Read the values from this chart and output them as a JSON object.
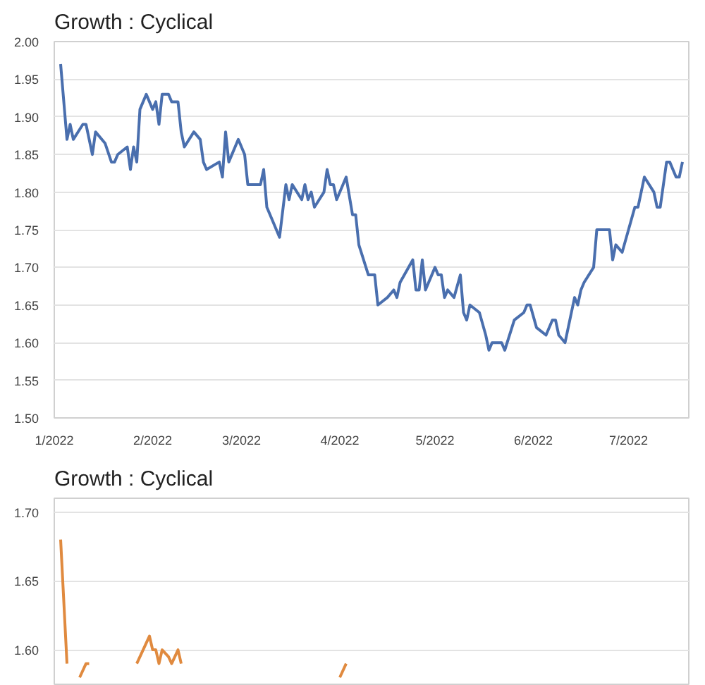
{
  "chart_data": [
    {
      "type": "line",
      "title": "Growth : Cyclical",
      "grid": "y",
      "xlim": [
        "2022-01-01",
        "2022-07-20"
      ],
      "xticks": [
        {
          "value": "2022-01-01",
          "label": "1/2022"
        },
        {
          "value": "2022-02-01",
          "label": "2/2022"
        },
        {
          "value": "2022-03-01",
          "label": "3/2022"
        },
        {
          "value": "2022-04-01",
          "label": "4/2022"
        },
        {
          "value": "2022-05-01",
          "label": "5/2022"
        },
        {
          "value": "2022-06-01",
          "label": "6/2022"
        },
        {
          "value": "2022-07-01",
          "label": "7/2022"
        }
      ],
      "ylim": [
        1.5,
        2.0
      ],
      "yticks": [
        {
          "value": 1.5,
          "label": "1.50"
        },
        {
          "value": 1.55,
          "label": "1.55"
        },
        {
          "value": 1.6,
          "label": "1.60"
        },
        {
          "value": 1.65,
          "label": "1.65"
        },
        {
          "value": 1.7,
          "label": "1.70"
        },
        {
          "value": 1.75,
          "label": "1.75"
        },
        {
          "value": 1.8,
          "label": "1.80"
        },
        {
          "value": 1.85,
          "label": "1.85"
        },
        {
          "value": 1.9,
          "label": "1.90"
        },
        {
          "value": 1.95,
          "label": "1.95"
        },
        {
          "value": 2.0,
          "label": "2.00"
        }
      ],
      "series": [
        {
          "color": "#4a6fae",
          "x": [
            "2022-01-03",
            "2022-01-05",
            "2022-01-06",
            "2022-01-07",
            "2022-01-10",
            "2022-01-11",
            "2022-01-13",
            "2022-01-14",
            "2022-01-17",
            "2022-01-19",
            "2022-01-20",
            "2022-01-21",
            "2022-01-24",
            "2022-01-25",
            "2022-01-26",
            "2022-01-27",
            "2022-01-28",
            "2022-01-30",
            "2022-02-01",
            "2022-02-02",
            "2022-02-03",
            "2022-02-04",
            "2022-02-06",
            "2022-02-07",
            "2022-02-09",
            "2022-02-10",
            "2022-02-11",
            "2022-02-14",
            "2022-02-16",
            "2022-02-17",
            "2022-02-18",
            "2022-02-22",
            "2022-02-23",
            "2022-02-24",
            "2022-02-25",
            "2022-02-28",
            "2022-03-02",
            "2022-03-03",
            "2022-03-07",
            "2022-03-08",
            "2022-03-09",
            "2022-03-11",
            "2022-03-13",
            "2022-03-15",
            "2022-03-16",
            "2022-03-17",
            "2022-03-20",
            "2022-03-21",
            "2022-03-22",
            "2022-03-23",
            "2022-03-24",
            "2022-03-27",
            "2022-03-28",
            "2022-03-29",
            "2022-03-30",
            "2022-03-31",
            "2022-04-03",
            "2022-04-05",
            "2022-04-06",
            "2022-04-07",
            "2022-04-10",
            "2022-04-12",
            "2022-04-13",
            "2022-04-16",
            "2022-04-18",
            "2022-04-19",
            "2022-04-20",
            "2022-04-24",
            "2022-04-25",
            "2022-04-26",
            "2022-04-27",
            "2022-04-28",
            "2022-05-01",
            "2022-05-02",
            "2022-05-03",
            "2022-05-04",
            "2022-05-05",
            "2022-05-07",
            "2022-05-09",
            "2022-05-10",
            "2022-05-11",
            "2022-05-12",
            "2022-05-15",
            "2022-05-17",
            "2022-05-18",
            "2022-05-19",
            "2022-05-22",
            "2022-05-23",
            "2022-05-26",
            "2022-05-29",
            "2022-05-30",
            "2022-05-31",
            "2022-06-02",
            "2022-06-05",
            "2022-06-07",
            "2022-06-08",
            "2022-06-09",
            "2022-06-11",
            "2022-06-14",
            "2022-06-15",
            "2022-06-16",
            "2022-06-17",
            "2022-06-20",
            "2022-06-21",
            "2022-06-25",
            "2022-06-26",
            "2022-06-27",
            "2022-06-29",
            "2022-07-03",
            "2022-07-04",
            "2022-07-06",
            "2022-07-09",
            "2022-07-10",
            "2022-07-11",
            "2022-07-13",
            "2022-07-14",
            "2022-07-16",
            "2022-07-17",
            "2022-07-18"
          ],
          "values": [
            1.97,
            1.87,
            1.89,
            1.87,
            1.89,
            1.89,
            1.85,
            1.88,
            1.865,
            1.84,
            1.84,
            1.85,
            1.86,
            1.83,
            1.86,
            1.84,
            1.91,
            1.93,
            1.91,
            1.92,
            1.89,
            1.93,
            1.93,
            1.92,
            1.92,
            1.88,
            1.86,
            1.88,
            1.87,
            1.84,
            1.83,
            1.84,
            1.82,
            1.88,
            1.84,
            1.87,
            1.85,
            1.81,
            1.81,
            1.83,
            1.78,
            1.76,
            1.74,
            1.81,
            1.79,
            1.81,
            1.79,
            1.81,
            1.79,
            1.8,
            1.78,
            1.8,
            1.83,
            1.81,
            1.81,
            1.79,
            1.82,
            1.77,
            1.77,
            1.73,
            1.69,
            1.69,
            1.65,
            1.66,
            1.67,
            1.66,
            1.68,
            1.71,
            1.67,
            1.67,
            1.71,
            1.67,
            1.7,
            1.69,
            1.69,
            1.66,
            1.67,
            1.66,
            1.69,
            1.64,
            1.63,
            1.65,
            1.64,
            1.61,
            1.59,
            1.6,
            1.6,
            1.59,
            1.63,
            1.64,
            1.65,
            1.65,
            1.62,
            1.61,
            1.63,
            1.63,
            1.61,
            1.6,
            1.66,
            1.65,
            1.67,
            1.68,
            1.7,
            1.75,
            1.75,
            1.71,
            1.73,
            1.72,
            1.78,
            1.78,
            1.82,
            1.8,
            1.78,
            1.78,
            1.84,
            1.84,
            1.82,
            1.82,
            1.84
          ]
        }
      ]
    },
    {
      "type": "line",
      "title": "Growth : Cyclical",
      "grid": "y",
      "tick_labels": "y",
      "xlim": [
        "2022-01-01",
        "2022-07-20"
      ],
      "ylim": [
        1.575,
        1.71
      ],
      "yticks": [
        {
          "value": 1.6,
          "label": "1.60"
        },
        {
          "value": 1.65,
          "label": "1.65"
        },
        {
          "value": 1.7,
          "label": "1.70"
        }
      ],
      "series": [
        {
          "color": "#e08a3f",
          "x": [
            "2022-01-03",
            "2022-01-05",
            "2022-01-07",
            "2022-01-09",
            "2022-01-11",
            "2022-01-12",
            "2022-01-13",
            "2022-01-27",
            "2022-01-29",
            "2022-01-31",
            "2022-02-01",
            "2022-02-02",
            "2022-02-03",
            "2022-02-04",
            "2022-02-06",
            "2022-02-07",
            "2022-02-09",
            "2022-02-10",
            "2022-02-11",
            "2022-04-01",
            "2022-04-03"
          ],
          "values": [
            1.68,
            1.59,
            null,
            1.58,
            1.59,
            1.59,
            null,
            1.59,
            1.6,
            1.61,
            1.6,
            1.6,
            1.59,
            1.6,
            1.595,
            1.59,
            1.6,
            1.59,
            null,
            1.58,
            1.59
          ]
        }
      ]
    }
  ]
}
